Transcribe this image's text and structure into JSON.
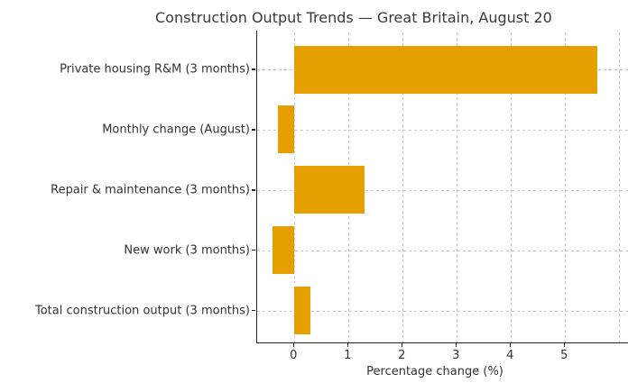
{
  "title": "Construction Output Trends — Great Britain, August 20",
  "chart_data": {
    "type": "bar",
    "orientation": "horizontal",
    "title": "Construction Output Trends — Great Britain, August 20",
    "categories": [
      "Private housing R&M (3 months)",
      "Monthly change (August)",
      "Repair & maintenance (3 months)",
      "New work (3 months)",
      "Total construction output (3 months)"
    ],
    "values": [
      5.6,
      -0.3,
      1.3,
      -0.4,
      0.3
    ],
    "xlabel": "Percentage change (%)",
    "ylabel": "",
    "xlim": [
      -0.7,
      6.2
    ],
    "xticks": [
      0,
      1,
      2,
      3,
      4,
      5
    ],
    "grid": true,
    "legend": "none",
    "bar_color": "#E69F00",
    "grid_color": "#cbcbcb",
    "axis_color": "#262626",
    "text_color": "#333333",
    "background": "#ffffff"
  }
}
